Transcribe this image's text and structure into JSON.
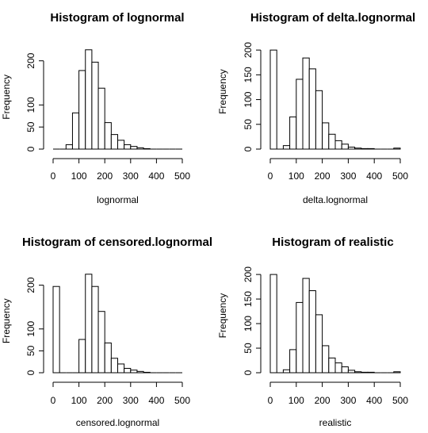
{
  "chart_data": [
    {
      "type": "bar",
      "title": "Histogram of lognormal",
      "xlabel": "lognormal",
      "ylabel": "Frequency",
      "bin_width": 25,
      "bins_start": [
        0,
        25,
        50,
        75,
        100,
        125,
        150,
        175,
        200,
        225,
        250,
        275,
        300,
        325,
        350,
        375,
        400,
        425,
        450,
        475
      ],
      "values": [
        0,
        0,
        10,
        82,
        178,
        225,
        197,
        138,
        60,
        33,
        20,
        10,
        6,
        3,
        1,
        0,
        0,
        0,
        0,
        0
      ],
      "xlim": [
        0,
        500
      ],
      "ylim": [
        0,
        230
      ],
      "xticks": [
        "0",
        "100",
        "200",
        "300",
        "400",
        "500"
      ],
      "yticks": [
        "0",
        "50",
        "100",
        "200"
      ]
    },
    {
      "type": "bar",
      "title": "Histogram of delta.lognormal",
      "xlabel": "delta.lognormal",
      "ylabel": "Frequency",
      "bin_width": 25,
      "bins_start": [
        0,
        25,
        50,
        75,
        100,
        125,
        150,
        175,
        200,
        225,
        250,
        275,
        300,
        325,
        350,
        375,
        400,
        425,
        450,
        475
      ],
      "values": [
        200,
        0,
        7,
        65,
        141,
        184,
        162,
        118,
        53,
        30,
        17,
        10,
        4,
        2,
        1,
        1,
        0,
        0,
        0,
        2
      ],
      "xlim": [
        0,
        500
      ],
      "ylim": [
        0,
        205
      ],
      "xticks": [
        "0",
        "100",
        "200",
        "300",
        "400",
        "500"
      ],
      "yticks": [
        "0",
        "50",
        "100",
        "150",
        "200"
      ]
    },
    {
      "type": "bar",
      "title": "Histogram of censored.lognormal",
      "xlabel": "censored.lognormal",
      "ylabel": "Frequency",
      "bin_width": 25,
      "bins_start": [
        0,
        25,
        50,
        75,
        100,
        125,
        150,
        175,
        200,
        225,
        250,
        275,
        300,
        325,
        350,
        375,
        400,
        425,
        450,
        475
      ],
      "values": [
        197,
        0,
        0,
        0,
        76,
        225,
        197,
        140,
        68,
        33,
        20,
        10,
        6,
        3,
        1,
        0,
        0,
        0,
        0,
        0
      ],
      "xlim": [
        0,
        500
      ],
      "ylim": [
        0,
        230
      ],
      "xticks": [
        "0",
        "100",
        "200",
        "300",
        "400",
        "500"
      ],
      "yticks": [
        "0",
        "50",
        "100",
        "200"
      ]
    },
    {
      "type": "bar",
      "title": "Histogram of realistic",
      "xlabel": "realistic",
      "ylabel": "Frequency",
      "bin_width": 25,
      "bins_start": [
        0,
        25,
        50,
        75,
        100,
        125,
        150,
        175,
        200,
        225,
        250,
        275,
        300,
        325,
        350,
        375,
        400,
        425,
        450,
        475
      ],
      "values": [
        200,
        0,
        6,
        47,
        143,
        192,
        167,
        118,
        55,
        30,
        20,
        12,
        5,
        2,
        1,
        1,
        0,
        0,
        0,
        2
      ],
      "xlim": [
        0,
        500
      ],
      "ylim": [
        0,
        205
      ],
      "xticks": [
        "0",
        "100",
        "200",
        "300",
        "400",
        "500"
      ],
      "yticks": [
        "0",
        "50",
        "100",
        "150",
        "200"
      ]
    }
  ]
}
